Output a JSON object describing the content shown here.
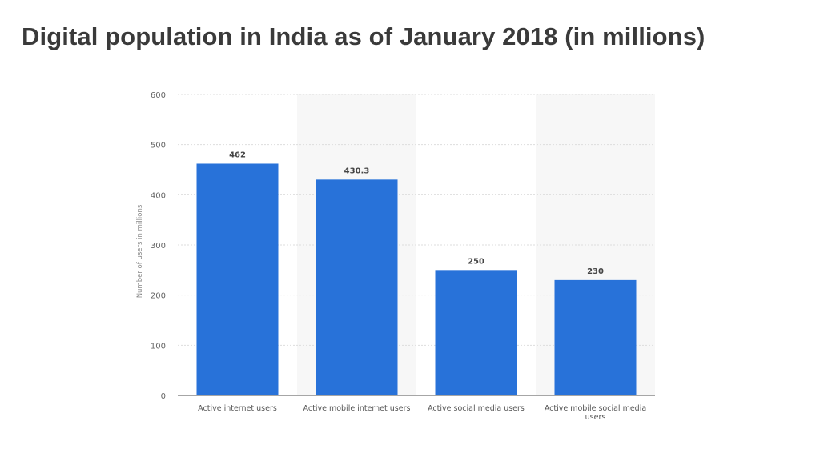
{
  "chart_data": {
    "type": "bar",
    "title": "Digital population in India as of January 2018 (in millions)",
    "xlabel": "",
    "ylabel": "Number of users in millions",
    "categories": [
      [
        "Active internet users"
      ],
      [
        "Active mobile internet users"
      ],
      [
        "Active social media users"
      ],
      [
        "Active mobile social media",
        "users"
      ]
    ],
    "values": [
      462,
      430.3,
      250,
      230
    ],
    "value_labels": [
      "462",
      "430.3",
      "250",
      "230"
    ],
    "ylim": [
      0,
      600
    ],
    "yticks": [
      0,
      100,
      200,
      300,
      400,
      500,
      600
    ],
    "grid": true,
    "legend": "none",
    "colors": {
      "bar": "#2872d9",
      "band": "#f7f7f7",
      "grid": "#dddddd",
      "axis": "#888888"
    }
  }
}
